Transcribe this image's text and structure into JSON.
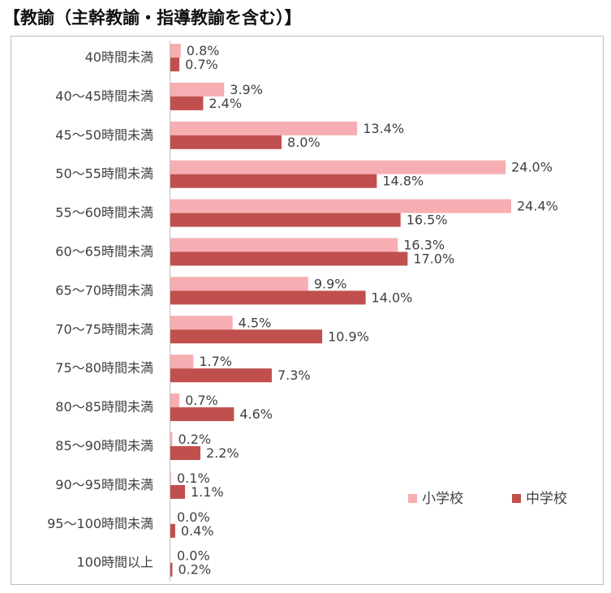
{
  "heading": "【教諭（主幹教諭・指導教諭を含む）】",
  "chart_data": {
    "type": "bar",
    "orientation": "horizontal",
    "categories": [
      "40時間未満",
      "40～45時間未満",
      "45～50時間未満",
      "50～55時間未満",
      "55～60時間未満",
      "60～65時間未満",
      "65～70時間未満",
      "70～75時間未満",
      "75～80時間未満",
      "80～85時間未満",
      "85～90時間未満",
      "90～95時間未満",
      "95～100時間未満",
      "100時間以上"
    ],
    "series": [
      {
        "name": "小学校",
        "color": "#f7aeb2",
        "values": [
          0.8,
          3.9,
          13.4,
          24.0,
          24.4,
          16.3,
          9.9,
          4.5,
          1.7,
          0.7,
          0.2,
          0.1,
          0.0,
          0.0
        ],
        "labels": [
          "0.8%",
          "3.9%",
          "13.4%",
          "24.0%",
          "24.4%",
          "16.3%",
          "9.9%",
          "4.5%",
          "1.7%",
          "0.7%",
          "0.2%",
          "0.1%",
          "0.0%",
          "0.0%"
        ]
      },
      {
        "name": "中学校",
        "color": "#c0504d",
        "values": [
          0.7,
          2.4,
          8.0,
          14.8,
          16.5,
          17.0,
          14.0,
          10.9,
          7.3,
          4.6,
          2.2,
          1.1,
          0.4,
          0.2
        ],
        "labels": [
          "0.7%",
          "2.4%",
          "8.0%",
          "14.8%",
          "16.5%",
          "17.0%",
          "14.0%",
          "10.9%",
          "7.3%",
          "4.6%",
          "2.2%",
          "1.1%",
          "0.4%",
          "0.2%"
        ]
      }
    ],
    "xlim": [
      0,
      25
    ],
    "grid": false,
    "legend_position": "bottom-right"
  }
}
